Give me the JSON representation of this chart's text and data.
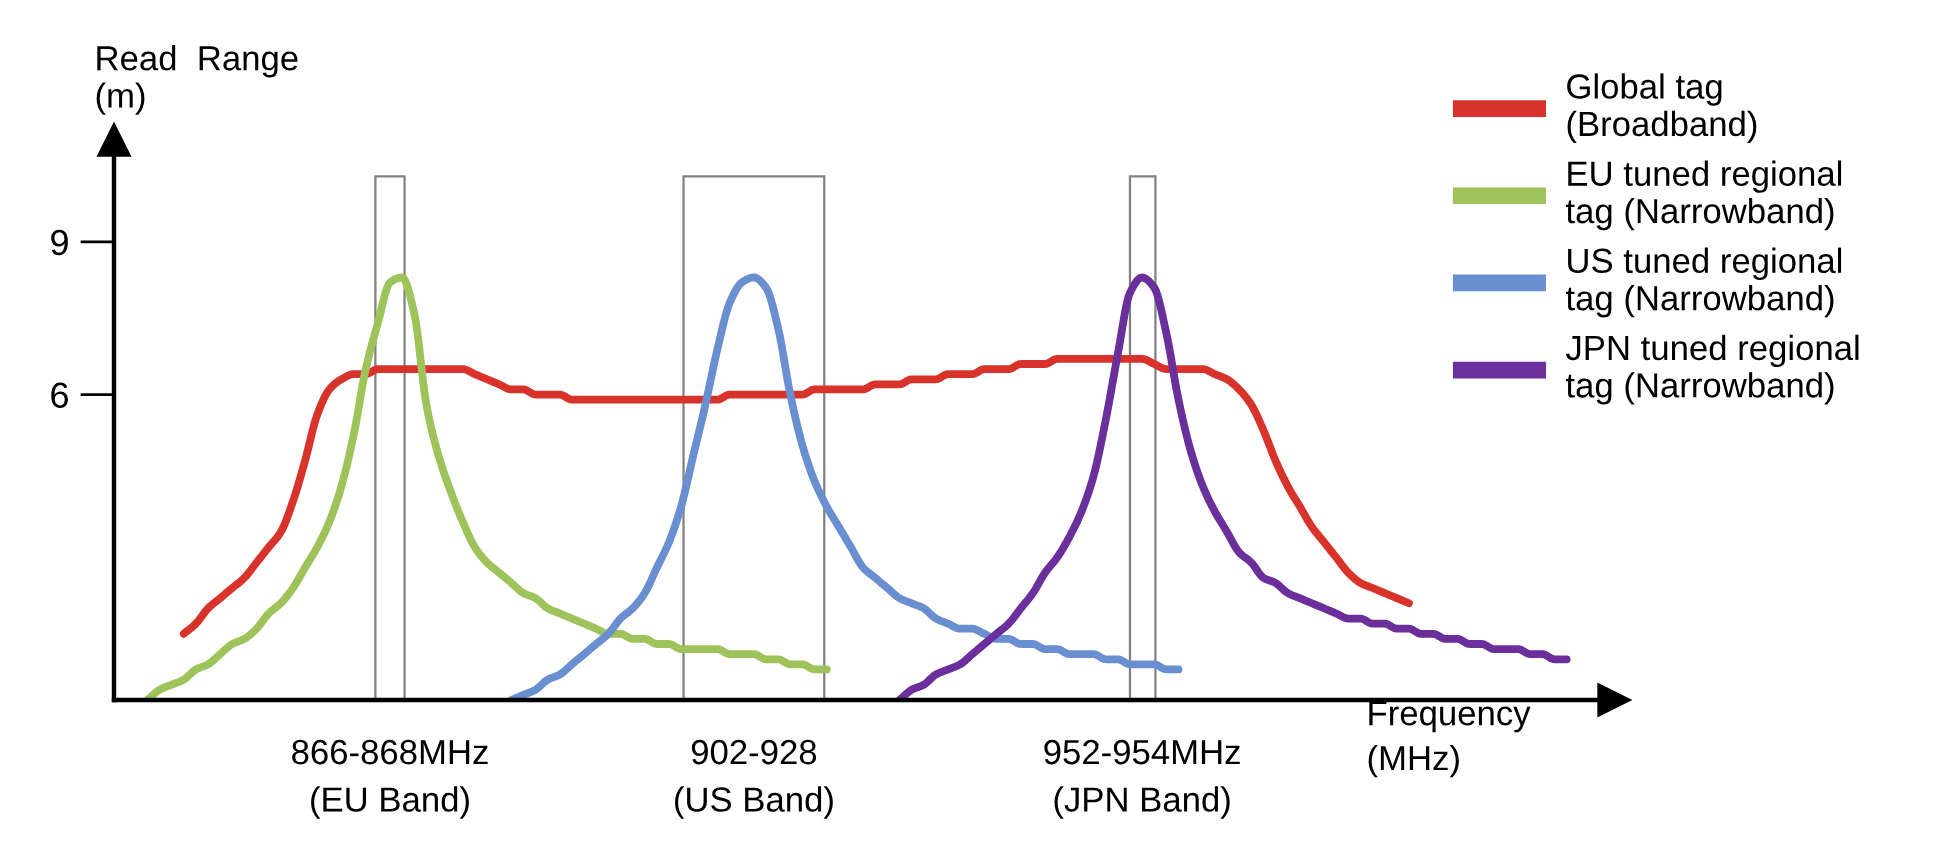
{
  "chart_data": {
    "type": "line",
    "xlabel": "Frequency\n(MHz)",
    "ylabel": "Read  Range\n(m)",
    "ylim": [
      0,
      11
    ],
    "yticks": [
      6,
      9
    ],
    "categories": [
      null,
      null,
      null,
      null,
      null,
      null,
      null,
      null,
      null,
      null,
      null,
      null,
      null,
      null,
      null,
      null,
      null,
      null,
      null,
      null,
      null,
      null,
      null,
      "866-868MHz\n(EU Band)",
      null,
      null,
      null,
      null,
      null,
      null,
      null,
      null,
      null,
      null,
      null,
      null,
      null,
      null,
      null,
      null,
      null,
      null,
      null,
      null,
      null,
      null,
      null,
      null,
      null,
      null,
      null,
      null,
      null,
      "902-928\n(US Band)",
      null,
      null,
      null,
      null,
      null,
      null,
      null,
      null,
      null,
      null,
      null,
      null,
      null,
      null,
      null,
      null,
      null,
      null,
      null,
      null,
      null,
      null,
      null,
      null,
      null,
      null,
      null,
      null,
      null,
      null,
      null,
      "952-954MHz\n(JPN Band)",
      null,
      null,
      null,
      null,
      null,
      null,
      null,
      null,
      null,
      null,
      null,
      null,
      null,
      null,
      null,
      null,
      null,
      null,
      null,
      null,
      null,
      null,
      null,
      null,
      null,
      null,
      null,
      null,
      null,
      null,
      null,
      null,
      null,
      null,
      null
    ],
    "grid": false,
    "legend": "top right",
    "marker": "none",
    "line_style": "solid",
    "series": [
      {
        "name": "Global tag\n(Broadband)",
        "color": "#d7332a",
        "values": [
          null,
          null,
          null,
          null,
          null,
          null,
          1.3,
          1.5,
          1.8,
          2.0,
          2.2,
          2.4,
          2.7,
          3.0,
          3.3,
          3.9,
          4.7,
          5.6,
          6.1,
          6.3,
          6.4,
          6.4,
          6.5,
          6.5,
          6.5,
          6.5,
          6.5,
          6.5,
          6.5,
          6.5,
          6.4,
          6.3,
          6.2,
          6.1,
          6.1,
          6.0,
          6.0,
          6.0,
          5.9,
          5.9,
          5.9,
          5.9,
          5.9,
          5.9,
          5.9,
          5.9,
          5.9,
          5.9,
          5.9,
          5.9,
          5.9,
          6.0,
          6.0,
          6.0,
          6.0,
          6.0,
          6.0,
          6.0,
          6.1,
          6.1,
          6.1,
          6.1,
          6.1,
          6.2,
          6.2,
          6.2,
          6.3,
          6.3,
          6.3,
          6.4,
          6.4,
          6.4,
          6.5,
          6.5,
          6.5,
          6.6,
          6.6,
          6.6,
          6.7,
          6.7,
          6.7,
          6.7,
          6.7,
          6.7,
          6.7,
          6.7,
          6.6,
          6.5,
          6.5,
          6.5,
          6.5,
          6.4,
          6.3,
          6.1,
          5.8,
          5.3,
          4.7,
          4.2,
          3.8,
          3.4,
          3.1,
          2.8,
          2.5,
          2.3,
          2.2,
          2.1,
          2.0,
          1.9,
          null,
          null,
          null,
          null,
          null,
          null,
          null,
          null,
          null,
          null,
          null,
          null,
          null
        ]
      },
      {
        "name": "EU tuned regional\ntag (Narrowband)",
        "color": "#9dc35a",
        "values": [
          null,
          null,
          null,
          0.0,
          0.2,
          0.3,
          0.4,
          0.6,
          0.7,
          0.9,
          1.1,
          1.2,
          1.4,
          1.7,
          1.9,
          2.2,
          2.6,
          3.0,
          3.5,
          4.2,
          5.2,
          6.5,
          7.4,
          8.2,
          8.3,
          7.6,
          5.8,
          4.8,
          4.1,
          3.5,
          3.0,
          2.7,
          2.5,
          2.3,
          2.1,
          2.0,
          1.8,
          1.7,
          1.6,
          1.5,
          1.4,
          1.3,
          1.3,
          1.2,
          1.2,
          1.1,
          1.1,
          1.0,
          1.0,
          1.0,
          1.0,
          0.9,
          0.9,
          0.9,
          0.8,
          0.8,
          0.7,
          0.7,
          0.6,
          0.6,
          null,
          null,
          null,
          null,
          null,
          null,
          null,
          null,
          null,
          null,
          null,
          null,
          null,
          null,
          null,
          null,
          null,
          null,
          null,
          null,
          null,
          null,
          null,
          null,
          null,
          null,
          null,
          null,
          null,
          null,
          null,
          null,
          null,
          null,
          null,
          null,
          null,
          null,
          null,
          null,
          null,
          null,
          null,
          null,
          null,
          null,
          null,
          null,
          null,
          null,
          null,
          null,
          null,
          null,
          null,
          null,
          null,
          null,
          null,
          null,
          null
        ]
      },
      {
        "name": "US tuned regional\ntag (Narrowband)",
        "color": "#6a8fd0",
        "values": [
          null,
          null,
          null,
          null,
          null,
          null,
          null,
          null,
          null,
          null,
          null,
          null,
          null,
          null,
          null,
          null,
          null,
          null,
          null,
          null,
          null,
          null,
          null,
          null,
          null,
          null,
          null,
          null,
          null,
          null,
          null,
          null,
          null,
          0.0,
          0.1,
          0.2,
          0.4,
          0.5,
          0.7,
          0.9,
          1.1,
          1.3,
          1.6,
          1.8,
          2.1,
          2.6,
          3.1,
          3.8,
          4.8,
          5.8,
          6.9,
          7.8,
          8.2,
          8.3,
          8.1,
          7.3,
          6.0,
          5.0,
          4.3,
          3.8,
          3.4,
          3.0,
          2.6,
          2.4,
          2.2,
          2.0,
          1.9,
          1.8,
          1.6,
          1.5,
          1.4,
          1.4,
          1.3,
          1.2,
          1.2,
          1.1,
          1.1,
          1.0,
          1.0,
          0.9,
          0.9,
          0.9,
          0.8,
          0.8,
          0.7,
          0.7,
          0.7,
          0.6,
          0.6,
          null,
          null,
          null,
          null,
          null,
          null,
          null,
          null,
          null,
          null,
          null,
          null,
          null,
          null,
          null,
          null,
          null,
          null,
          null,
          null,
          null,
          null,
          null,
          null,
          null,
          null,
          null,
          null,
          null,
          null,
          null,
          null
        ]
      },
      {
        "name": "JPN tuned regional\ntag (Narrowband)",
        "color": "#6a2f9a",
        "values": [
          null,
          null,
          null,
          null,
          null,
          null,
          null,
          null,
          null,
          null,
          null,
          null,
          null,
          null,
          null,
          null,
          null,
          null,
          null,
          null,
          null,
          null,
          null,
          null,
          null,
          null,
          null,
          null,
          null,
          null,
          null,
          null,
          null,
          null,
          null,
          null,
          null,
          null,
          null,
          null,
          null,
          null,
          null,
          null,
          null,
          null,
          null,
          null,
          null,
          null,
          null,
          null,
          null,
          null,
          null,
          null,
          null,
          null,
          null,
          null,
          null,
          null,
          null,
          null,
          null,
          0.0,
          0.2,
          0.3,
          0.5,
          0.6,
          0.7,
          0.9,
          1.1,
          1.3,
          1.5,
          1.8,
          2.1,
          2.5,
          2.8,
          3.2,
          3.7,
          4.4,
          5.5,
          6.8,
          8.0,
          8.3,
          8.1,
          7.2,
          5.9,
          4.9,
          4.2,
          3.7,
          3.3,
          2.9,
          2.7,
          2.4,
          2.3,
          2.1,
          2.0,
          1.9,
          1.8,
          1.7,
          1.6,
          1.6,
          1.5,
          1.5,
          1.4,
          1.4,
          1.3,
          1.3,
          1.2,
          1.2,
          1.1,
          1.1,
          1.0,
          1.0,
          1.0,
          0.9,
          0.9,
          0.8,
          0.8
        ]
      }
    ]
  }
}
